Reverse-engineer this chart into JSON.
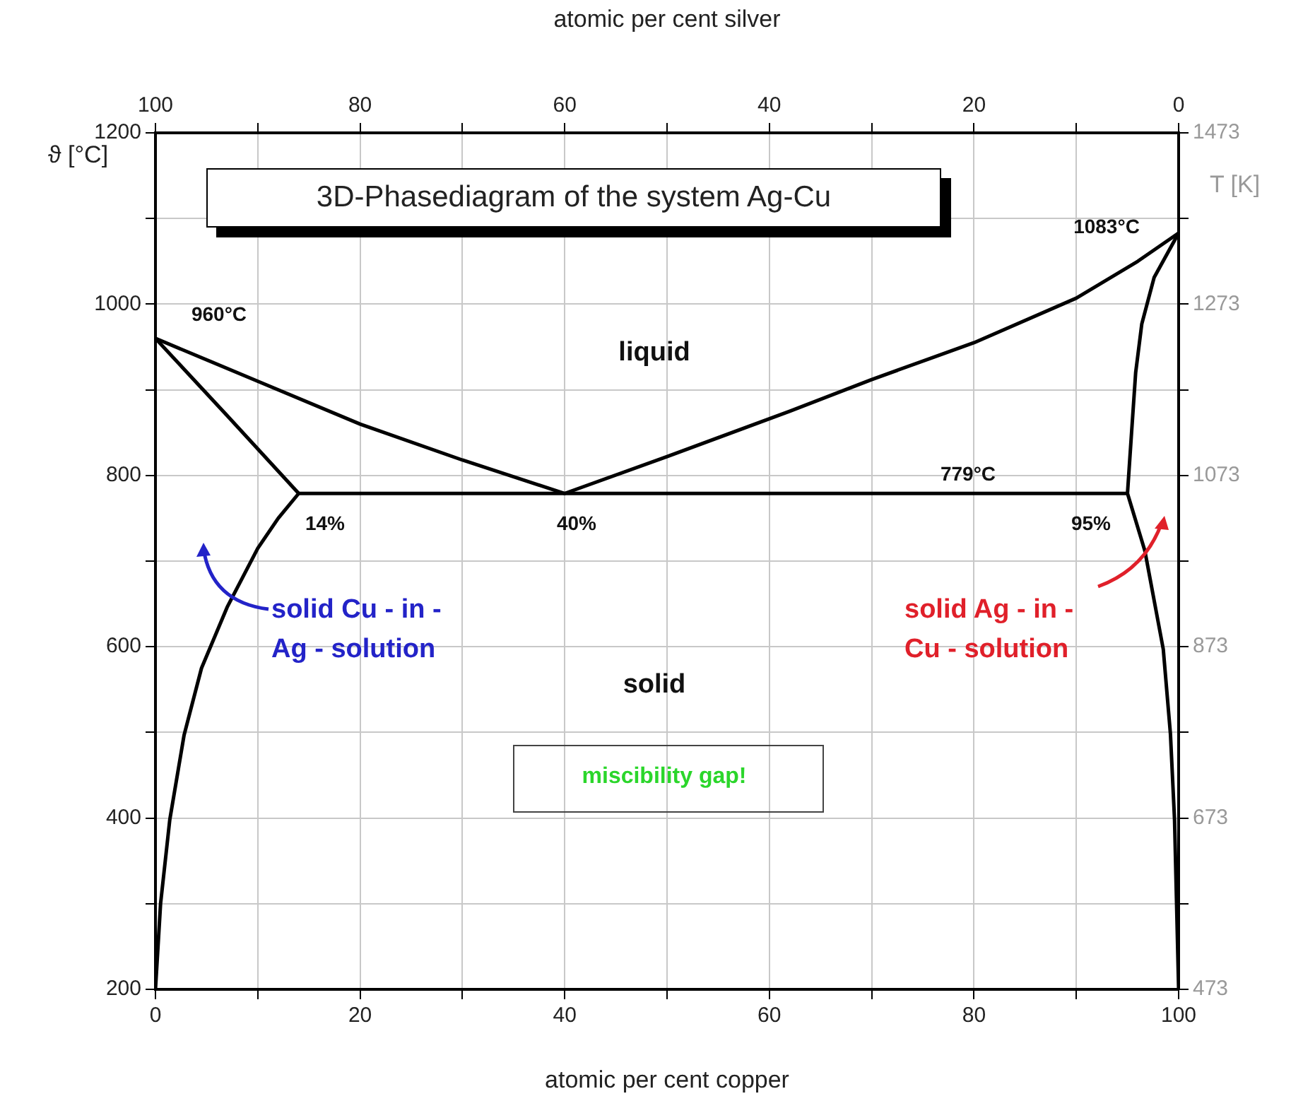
{
  "chart_data": {
    "type": "line",
    "title": "3D-Phasediagram of the system Ag-Cu",
    "xlabel": "atomic per cent copper",
    "x2label": "atomic per cent silver",
    "ylabel": "ϑ [°C]",
    "y2label": "T [K]",
    "xlim": [
      0,
      100
    ],
    "xticks": [
      0,
      {
        "value": 10,
        "label": null
      },
      20,
      {
        "value": 30,
        "label": null
      },
      40,
      {
        "value": 50,
        "label": null
      },
      60,
      {
        "value": 70,
        "label": null
      },
      80,
      {
        "value": 90,
        "label": null
      },
      100
    ],
    "x2lim": [
      100,
      0
    ],
    "x2ticks": [
      100,
      {
        "value": 90,
        "label": null
      },
      80,
      {
        "value": 70,
        "label": null
      },
      60,
      {
        "value": 50,
        "label": null
      },
      40,
      {
        "value": 30,
        "label": null
      },
      20,
      {
        "value": 10,
        "label": null
      },
      0
    ],
    "ylim": [
      200,
      1200
    ],
    "yticks": [
      200,
      {
        "value": 300,
        "label": null
      },
      400,
      {
        "value": 500,
        "label": null
      },
      600,
      {
        "value": 700,
        "label": null
      },
      800,
      {
        "value": 900,
        "label": null
      },
      1000,
      {
        "value": 1100,
        "label": null
      },
      1200
    ],
    "y2lim": [
      473,
      1473
    ],
    "y2ticks": [
      473,
      {
        "value": 573,
        "label": null
      },
      673,
      {
        "value": 773,
        "label": null
      },
      873,
      {
        "value": 973,
        "label": null
      },
      1073,
      {
        "value": 1173,
        "label": null
      },
      1273,
      {
        "value": 1373,
        "label": null
      },
      1473
    ],
    "grid": true,
    "legend": false,
    "marker": "none",
    "line_style": "solid",
    "series": [
      {
        "color": "#000000",
        "x": [
          0,
          10,
          20,
          30,
          40,
          50,
          62,
          70,
          80,
          90,
          96,
          100
        ],
        "values": [
          960,
          910,
          860,
          818,
          779,
          822,
          875,
          912,
          955,
          1007,
          1050,
          1083
        ]
      },
      {
        "color": "#000000",
        "x": [
          0,
          7,
          14,
          12,
          10,
          7,
          4.5,
          2.8,
          1.4,
          0.5,
          0
        ],
        "values": [
          960,
          870,
          779,
          750,
          715,
          646,
          575,
          497,
          398,
          300,
          200
        ]
      },
      {
        "color": "#000000",
        "x": [
          14,
          95
        ],
        "values": [
          779,
          779
        ]
      },
      {
        "color": "#000000",
        "x": [
          100,
          97.6,
          96.4,
          95.8,
          95.4,
          95,
          96.7,
          98.5,
          99.2,
          99.6,
          100
        ],
        "values": [
          1083,
          1031,
          977,
          920,
          850,
          779,
          712,
          597,
          498,
          398,
          200
        ]
      }
    ],
    "annotations": [
      "960°C",
      "1083°C",
      "779°C",
      "14%",
      "40%",
      "95%",
      "liquid",
      "solid",
      "solid Cu - in - Ag - solution",
      "solid Ag - in - Cu - solution",
      "miscibility gap!"
    ]
  }
}
